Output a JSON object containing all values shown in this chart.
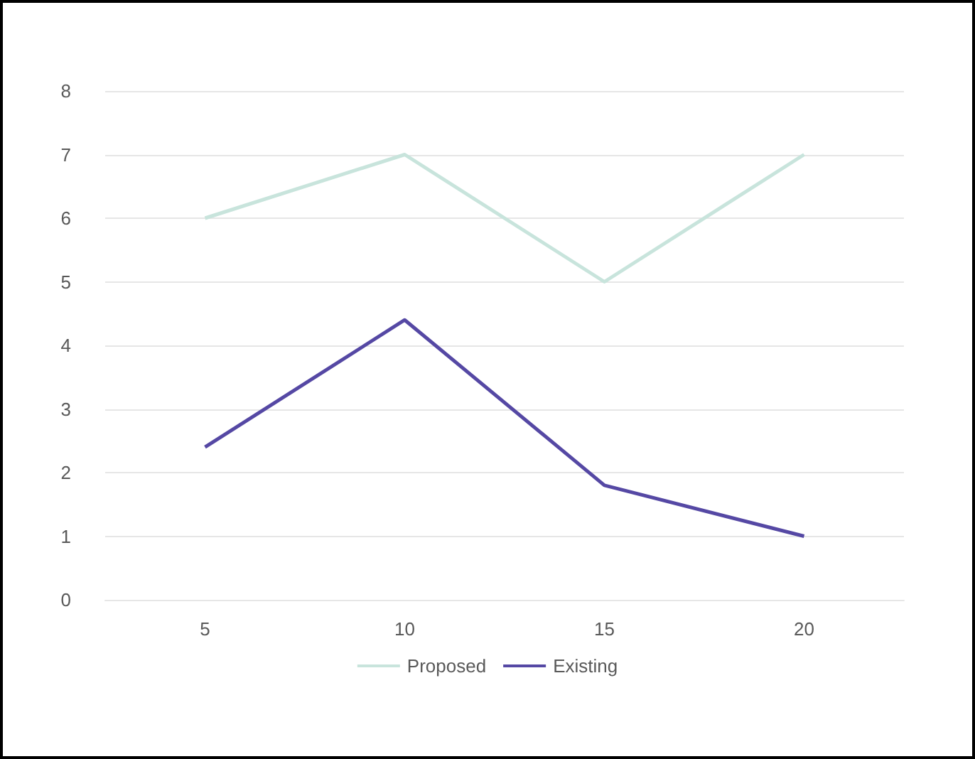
{
  "chart_data": {
    "type": "line",
    "categories": [
      "5",
      "10",
      "15",
      "20"
    ],
    "series": [
      {
        "name": "Proposed",
        "color": "#c8e4dc",
        "values": [
          6,
          7,
          5,
          7
        ]
      },
      {
        "name": "Existing",
        "color": "#5548a4",
        "values": [
          2.4,
          4.4,
          1.8,
          1.0
        ]
      }
    ],
    "ylim": [
      0,
      8
    ],
    "yticks": [
      0,
      1,
      2,
      3,
      4,
      5,
      6,
      7,
      8
    ],
    "grid": "y",
    "legend": "bottom",
    "marker": "none"
  }
}
